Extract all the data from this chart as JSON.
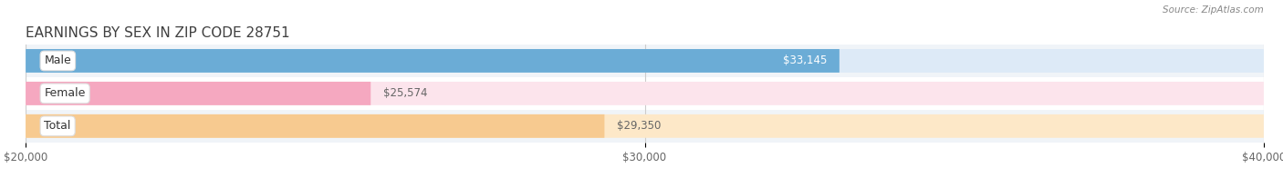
{
  "title": "EARNINGS BY SEX IN ZIP CODE 28751",
  "source": "Source: ZipAtlas.com",
  "categories": [
    "Male",
    "Female",
    "Total"
  ],
  "values": [
    33145,
    25574,
    29350
  ],
  "bar_colors": [
    "#6bacd6",
    "#f5a8c0",
    "#f7ca90"
  ],
  "track_colors": [
    "#ddeaf7",
    "#fce4ec",
    "#fde8c8"
  ],
  "row_bg_colors": [
    "#f0f4f8",
    "#ffffff",
    "#f0f4f8"
  ],
  "value_label_colors": [
    "#ffffff",
    "#666666",
    "#666666"
  ],
  "xmin": 20000,
  "xmax": 40000,
  "xticks": [
    20000,
    30000,
    40000
  ],
  "xtick_labels": [
    "$20,000",
    "$30,000",
    "$40,000"
  ],
  "bar_height": 0.72,
  "figure_bg": "#ffffff",
  "title_fontsize": 11,
  "tick_fontsize": 8.5,
  "label_fontsize": 8.5,
  "category_fontsize": 9
}
